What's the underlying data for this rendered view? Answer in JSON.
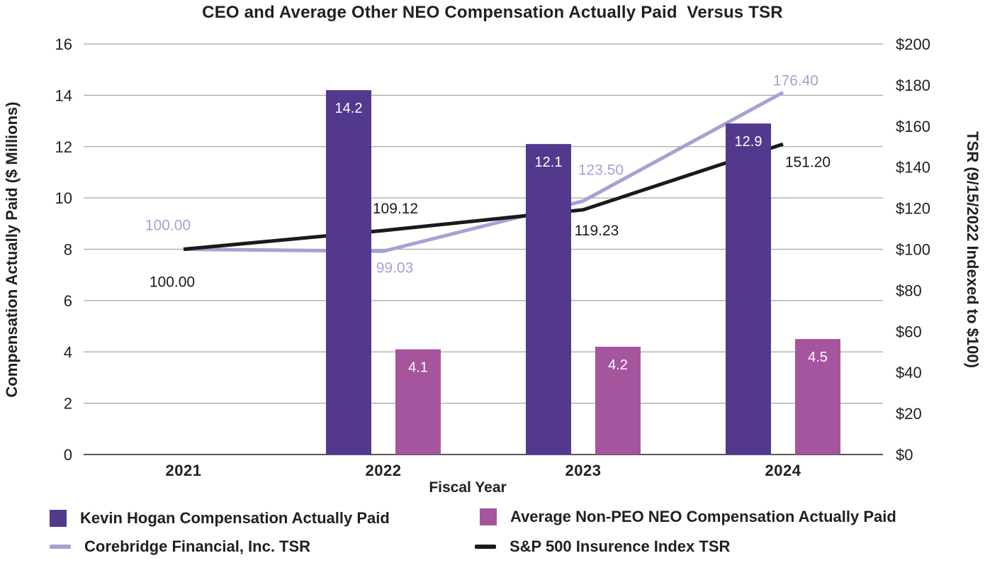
{
  "chart_data": {
    "type": "bar+line",
    "title": "CEO and Average Other NEO Compensation Actually Paid  Versus TSR",
    "categories": [
      "2021",
      "2022",
      "2023",
      "2024"
    ],
    "x_axis": {
      "title": "Fiscal Year"
    },
    "left_axis": {
      "title": "Compensation Actually Paid ($ Millions)",
      "min": 0,
      "max": 16,
      "step": 2,
      "ticks": [
        "0",
        "2",
        "4",
        "6",
        "8",
        "10",
        "12",
        "14",
        "16"
      ]
    },
    "right_axis": {
      "title": "TSR (9/15/2022 Indexed to $100)",
      "min": 0,
      "max": 200,
      "step": 20,
      "ticks": [
        "$0",
        "$20",
        "$40",
        "$60",
        "$80",
        "$100",
        "$120",
        "$140",
        "$160",
        "$180",
        "$200"
      ]
    },
    "grid": true,
    "legend_position": "bottom",
    "grid_color": "#A6A6A6",
    "text_color": "#231F20",
    "bar_series": [
      {
        "name": "Kevin Hogan Compensation Actually Paid",
        "color": "#52398E",
        "axis": "left",
        "values": [
          null,
          14.2,
          12.1,
          12.9
        ],
        "labels": [
          "",
          "14.2",
          "12.1",
          "12.9"
        ]
      },
      {
        "name": "Average Non-PEO NEO Compensation Actually Paid",
        "color": "#A4559E",
        "axis": "left",
        "values": [
          null,
          4.1,
          4.2,
          4.5
        ],
        "labels": [
          "",
          "4.1",
          "4.2",
          "4.5"
        ]
      }
    ],
    "line_series": [
      {
        "name": "Corebridge Financial, Inc. TSR",
        "color": "#A8A1D3",
        "axis": "right",
        "values": [
          100.0,
          99.03,
          123.5,
          176.4
        ],
        "labels": [
          "100.00",
          "99.03",
          "123.50",
          "176.40"
        ]
      },
      {
        "name": "S&P 500 Insurence Index TSR",
        "color": "#1A1A1A",
        "axis": "right",
        "values": [
          100.0,
          109.12,
          119.23,
          151.2
        ],
        "labels": [
          "100.00",
          "109.12",
          "119.23",
          "151.20"
        ]
      }
    ]
  }
}
